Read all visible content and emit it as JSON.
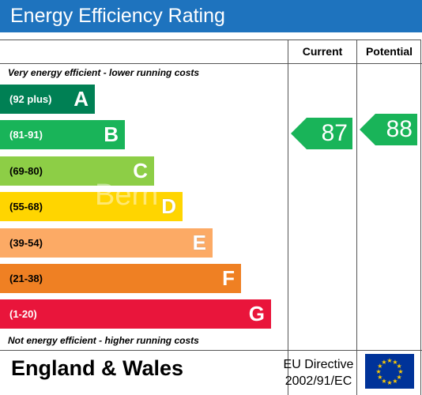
{
  "title": "Energy Efficiency Rating",
  "columns": {
    "current": "Current",
    "potential": "Potential"
  },
  "notes": {
    "top": "Very energy efficient - lower running costs",
    "bottom": "Not energy efficient - higher running costs"
  },
  "bands": [
    {
      "range": "(92 plus)",
      "letter": "A",
      "color": "#008054"
    },
    {
      "range": "(81-91)",
      "letter": "B",
      "color": "#19b459"
    },
    {
      "range": "(69-80)",
      "letter": "C",
      "color": "#8dce46"
    },
    {
      "range": "(55-68)",
      "letter": "D",
      "color": "#ffd500"
    },
    {
      "range": "(39-54)",
      "letter": "E",
      "color": "#fcaa65"
    },
    {
      "range": "(21-38)",
      "letter": "F",
      "color": "#ef8023"
    },
    {
      "range": "(1-20)",
      "letter": "G",
      "color": "#e9153b"
    }
  ],
  "current": {
    "value": "87",
    "band": "B",
    "color": "#19b459"
  },
  "potential": {
    "value": "88",
    "band": "B",
    "color": "#19b459"
  },
  "footer": {
    "region": "England & Wales",
    "directive_line1": "EU Directive",
    "directive_line2": "2002/91/EC"
  },
  "icons": {
    "flag": "eu-flag-icon"
  },
  "watermark": "Bern"
}
